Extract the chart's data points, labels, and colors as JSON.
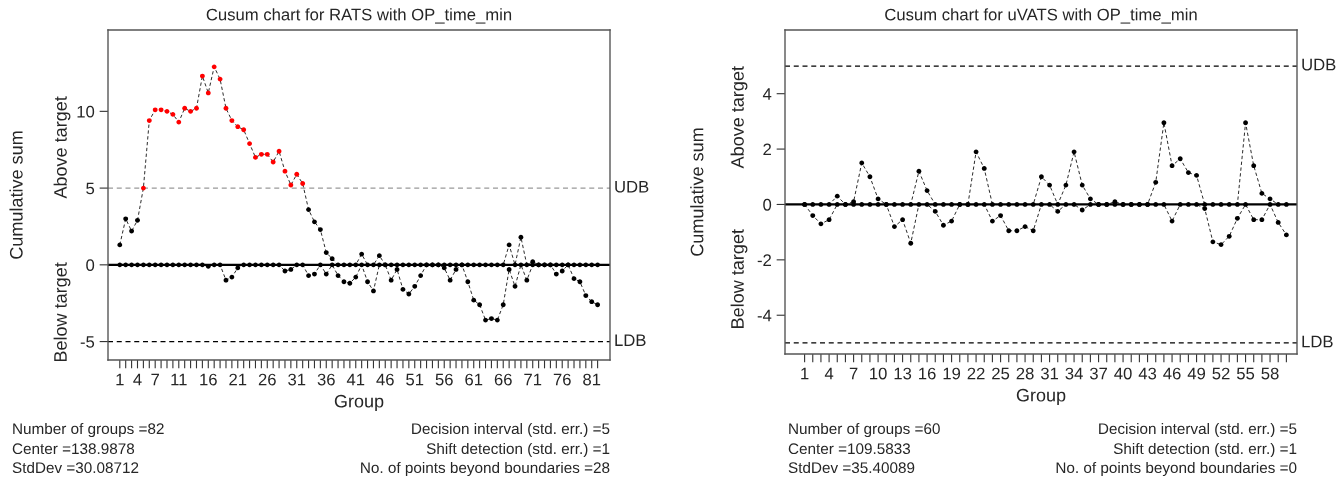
{
  "chart_data": [
    {
      "type": "line",
      "title": "Cusum chart for RATS with OP_time_min",
      "xlabel": "Group",
      "ylabel": "Cumulative sum",
      "marker": "circle",
      "line_style": "dashed",
      "x": [
        1,
        2,
        3,
        4,
        5,
        6,
        7,
        8,
        9,
        10,
        11,
        12,
        13,
        14,
        15,
        16,
        17,
        18,
        19,
        20,
        21,
        22,
        23,
        24,
        25,
        26,
        27,
        28,
        29,
        30,
        31,
        32,
        33,
        34,
        35,
        36,
        37,
        38,
        39,
        40,
        41,
        42,
        43,
        44,
        45,
        46,
        47,
        48,
        49,
        50,
        51,
        52,
        53,
        54,
        55,
        56,
        57,
        58,
        59,
        60,
        61,
        62,
        63,
        64,
        65,
        66,
        67,
        68,
        69,
        70,
        71,
        72,
        73,
        74,
        75,
        76,
        77,
        78,
        79,
        80,
        81,
        82
      ],
      "series": [
        {
          "color": "#000000",
          "values": [
            1.3,
            3.0,
            2.2,
            2.9,
            5.0,
            9.4,
            10.1,
            10.1,
            10.0,
            9.8,
            9.3,
            10.2,
            10.0,
            10.2,
            12.3,
            11.2,
            12.9,
            12.1,
            10.2,
            9.4,
            9.0,
            8.8,
            7.9,
            7.0,
            7.2,
            7.2,
            6.7,
            7.4,
            6.1,
            5.2,
            5.9,
            5.3,
            3.6,
            2.8,
            2.3,
            0.8,
            0.4,
            0,
            0,
            0,
            0,
            0.7,
            0,
            0,
            0.6,
            0,
            0,
            0,
            0,
            0,
            0,
            0,
            0,
            0,
            0,
            0,
            0,
            0,
            0,
            0,
            0,
            0,
            0,
            0,
            0,
            0,
            1.3,
            0,
            1.8,
            0,
            0.2,
            0,
            0,
            0,
            0,
            0,
            0,
            0,
            0,
            0,
            0,
            0
          ],
          "colors": [
            "#000000",
            "#000000",
            "#000000",
            "#000000",
            "#ff0000",
            "#ff0000",
            "#ff0000",
            "#ff0000",
            "#ff0000",
            "#ff0000",
            "#ff0000",
            "#ff0000",
            "#ff0000",
            "#ff0000",
            "#ff0000",
            "#ff0000",
            "#ff0000",
            "#ff0000",
            "#ff0000",
            "#ff0000",
            "#ff0000",
            "#ff0000",
            "#ff0000",
            "#ff0000",
            "#ff0000",
            "#ff0000",
            "#ff0000",
            "#ff0000",
            "#ff0000",
            "#ff0000",
            "#ff0000",
            "#ff0000",
            "#000000",
            "#000000",
            "#000000",
            "#000000",
            "#000000",
            "#000000",
            "#000000",
            "#000000",
            "#000000",
            "#000000",
            "#000000",
            "#000000",
            "#000000",
            "#000000",
            "#000000",
            "#000000",
            "#000000",
            "#000000",
            "#000000",
            "#000000",
            "#000000",
            "#000000",
            "#000000",
            "#000000",
            "#000000",
            "#000000",
            "#000000",
            "#000000",
            "#000000",
            "#000000",
            "#000000",
            "#000000",
            "#000000",
            "#000000",
            "#000000",
            "#000000",
            "#000000",
            "#000000",
            "#000000",
            "#000000",
            "#000000",
            "#000000",
            "#000000",
            "#000000",
            "#000000",
            "#000000",
            "#000000",
            "#000000",
            "#000000",
            "#000000"
          ]
        },
        {
          "color": "#000000",
          "values": [
            0,
            0,
            0,
            0,
            0,
            0,
            0,
            0,
            0,
            0,
            0,
            0,
            0,
            0,
            0,
            -0.1,
            0,
            0,
            -1.0,
            -0.8,
            -0.2,
            0,
            0,
            0,
            0,
            0,
            0,
            0,
            -0.4,
            -0.3,
            0,
            0,
            -0.7,
            -0.6,
            0,
            -0.6,
            0,
            -0.7,
            -1.1,
            -1.2,
            -0.8,
            0,
            -1.1,
            -1.7,
            0,
            0,
            -1.0,
            -0.3,
            -1.6,
            -1.9,
            -1.4,
            -0.7,
            0,
            0,
            0,
            -0.2,
            -1.0,
            -0.3,
            0,
            -1.1,
            -2.3,
            -2.6,
            -3.6,
            -3.5,
            -3.6,
            -2.6,
            -0.3,
            -1.4,
            0,
            -1.0,
            0,
            0,
            0,
            0,
            -0.6,
            -0.4,
            0,
            -0.9,
            -1.1,
            -2.0,
            -2.4,
            -2.6
          ]
        }
      ],
      "xlim": [
        -1,
        84.1
      ],
      "ylim": [
        -6.2,
        15.3
      ],
      "xticks": [
        1,
        {
          "value": 2,
          "label": null
        },
        {
          "value": 3,
          "label": null
        },
        4,
        {
          "value": 5,
          "label": null
        },
        {
          "value": 6,
          "label": null
        },
        7,
        {
          "value": 8,
          "label": null
        },
        {
          "value": 9,
          "label": null
        },
        {
          "value": 10,
          "label": null
        },
        11,
        {
          "value": 12,
          "label": null
        },
        {
          "value": 13,
          "label": null
        },
        {
          "value": 14,
          "label": null
        },
        {
          "value": 15,
          "label": null
        },
        16,
        {
          "value": 17,
          "label": null
        },
        {
          "value": 18,
          "label": null
        },
        {
          "value": 19,
          "label": null
        },
        {
          "value": 20,
          "label": null
        },
        21,
        {
          "value": 22,
          "label": null
        },
        {
          "value": 23,
          "label": null
        },
        {
          "value": 24,
          "label": null
        },
        {
          "value": 25,
          "label": null
        },
        26,
        {
          "value": 27,
          "label": null
        },
        {
          "value": 28,
          "label": null
        },
        {
          "value": 29,
          "label": null
        },
        {
          "value": 30,
          "label": null
        },
        31,
        {
          "value": 32,
          "label": null
        },
        {
          "value": 33,
          "label": null
        },
        {
          "value": 34,
          "label": null
        },
        {
          "value": 35,
          "label": null
        },
        36,
        {
          "value": 37,
          "label": null
        },
        {
          "value": 38,
          "label": null
        },
        {
          "value": 39,
          "label": null
        },
        {
          "value": 40,
          "label": null
        },
        41,
        {
          "value": 42,
          "label": null
        },
        {
          "value": 43,
          "label": null
        },
        {
          "value": 44,
          "label": null
        },
        {
          "value": 45,
          "label": null
        },
        46,
        {
          "value": 47,
          "label": null
        },
        {
          "value": 48,
          "label": null
        },
        {
          "value": 49,
          "label": null
        },
        {
          "value": 50,
          "label": null
        },
        51,
        {
          "value": 52,
          "label": null
        },
        {
          "value": 53,
          "label": null
        },
        {
          "value": 54,
          "label": null
        },
        {
          "value": 55,
          "label": null
        },
        56,
        {
          "value": 57,
          "label": null
        },
        {
          "value": 58,
          "label": null
        },
        {
          "value": 59,
          "label": null
        },
        {
          "value": 60,
          "label": null
        },
        61,
        {
          "value": 62,
          "label": null
        },
        {
          "value": 63,
          "label": null
        },
        {
          "value": 64,
          "label": null
        },
        {
          "value": 65,
          "label": null
        },
        66,
        {
          "value": 67,
          "label": null
        },
        {
          "value": 68,
          "label": null
        },
        {
          "value": 69,
          "label": null
        },
        {
          "value": 70,
          "label": null
        },
        71,
        {
          "value": 72,
          "label": null
        },
        {
          "value": 73,
          "label": null
        },
        {
          "value": 74,
          "label": null
        },
        {
          "value": 75,
          "label": null
        },
        76,
        {
          "value": 77,
          "label": null
        },
        {
          "value": 78,
          "label": null
        },
        {
          "value": 79,
          "label": null
        },
        {
          "value": 80,
          "label": null
        },
        81,
        {
          "value": 82,
          "label": null
        }
      ],
      "yticks": [
        -5,
        0,
        5,
        10
      ],
      "ref_lines": [
        {
          "axis": "y",
          "value": 0,
          "color": "#000000",
          "line_style": "solid"
        },
        {
          "axis": "y",
          "value": 5,
          "label": "UDB",
          "color": "#999999",
          "line_style": "dashed"
        },
        {
          "axis": "y",
          "value": -5,
          "label": "LDB",
          "color": "#000000",
          "line_style": "dashed"
        }
      ],
      "annotations": [
        "Above target",
        "Below target",
        "Number of groups =82",
        "Center =138.9878",
        "StdDev =30.08712",
        "Decision interval (std. err.) =5",
        "Shift detection (std. err.) =1",
        "No. of points beyond boundaries =28"
      ]
    },
    {
      "type": "line",
      "title": "Cusum chart for uVATS with OP_time_min",
      "xlabel": "Group",
      "ylabel": "Cumulative sum",
      "marker": "circle",
      "line_style": "dashed",
      "x": [
        1,
        2,
        3,
        4,
        5,
        6,
        7,
        8,
        9,
        10,
        11,
        12,
        13,
        14,
        15,
        16,
        17,
        18,
        19,
        20,
        21,
        22,
        23,
        24,
        25,
        26,
        27,
        28,
        29,
        30,
        31,
        32,
        33,
        34,
        35,
        36,
        37,
        38,
        39,
        40,
        41,
        42,
        43,
        44,
        45,
        46,
        47,
        48,
        49,
        50,
        51,
        52,
        53,
        54,
        55,
        56,
        57,
        58,
        59,
        60
      ],
      "series": [
        {
          "color": "#000000",
          "values": [
            0,
            0,
            0,
            0,
            0.3,
            0,
            0.1,
            1.5,
            1.0,
            0.2,
            0,
            0,
            0,
            0,
            1.2,
            0.5,
            0,
            0,
            0,
            0,
            0,
            1.9,
            1.3,
            0,
            0,
            0,
            0,
            0,
            0,
            1.0,
            0.7,
            0,
            0.7,
            1.9,
            0.7,
            0.2,
            0,
            0,
            0.1,
            0,
            0,
            0,
            0,
            0.8,
            2.95,
            1.4,
            1.65,
            1.15,
            1.05,
            0,
            0,
            0,
            0,
            0,
            2.95,
            1.4,
            0.4,
            0.2,
            0,
            0
          ]
        },
        {
          "color": "#000000",
          "values": [
            0,
            -0.4,
            -0.7,
            -0.55,
            0,
            0,
            0,
            0,
            0,
            0,
            0,
            -0.8,
            -0.55,
            -1.4,
            0,
            0,
            -0.25,
            -0.75,
            -0.6,
            0,
            0,
            0,
            0,
            -0.6,
            -0.4,
            -0.95,
            -0.95,
            -0.8,
            -0.95,
            0,
            0,
            -0.25,
            0,
            0,
            -0.2,
            0,
            0,
            0,
            0,
            0,
            0,
            0,
            0,
            0,
            0,
            -0.6,
            0,
            0,
            0,
            -0.15,
            -1.35,
            -1.45,
            -1.15,
            -0.5,
            0,
            -0.55,
            -0.55,
            0,
            -0.65,
            -1.1
          ]
        }
      ],
      "xlim": [
        -1.4,
        61.3
      ],
      "ylim": [
        -5.4,
        6.3
      ],
      "xticks": [
        1,
        {
          "value": 2,
          "label": null
        },
        {
          "value": 3,
          "label": null
        },
        4,
        {
          "value": 5,
          "label": null
        },
        {
          "value": 6,
          "label": null
        },
        7,
        {
          "value": 8,
          "label": null
        },
        {
          "value": 9,
          "label": null
        },
        10,
        {
          "value": 11,
          "label": null
        },
        {
          "value": 12,
          "label": null
        },
        13,
        {
          "value": 14,
          "label": null
        },
        {
          "value": 15,
          "label": null
        },
        16,
        {
          "value": 17,
          "label": null
        },
        {
          "value": 18,
          "label": null
        },
        19,
        {
          "value": 20,
          "label": null
        },
        {
          "value": 21,
          "label": null
        },
        22,
        {
          "value": 23,
          "label": null
        },
        {
          "value": 24,
          "label": null
        },
        25,
        {
          "value": 26,
          "label": null
        },
        {
          "value": 27,
          "label": null
        },
        28,
        {
          "value": 29,
          "label": null
        },
        {
          "value": 30,
          "label": null
        },
        31,
        {
          "value": 32,
          "label": null
        },
        {
          "value": 33,
          "label": null
        },
        34,
        {
          "value": 35,
          "label": null
        },
        {
          "value": 36,
          "label": null
        },
        37,
        {
          "value": 38,
          "label": null
        },
        {
          "value": 39,
          "label": null
        },
        40,
        {
          "value": 41,
          "label": null
        },
        {
          "value": 42,
          "label": null
        },
        43,
        {
          "value": 44,
          "label": null
        },
        {
          "value": 45,
          "label": null
        },
        46,
        {
          "value": 47,
          "label": null
        },
        {
          "value": 48,
          "label": null
        },
        49,
        {
          "value": 50,
          "label": null
        },
        {
          "value": 51,
          "label": null
        },
        52,
        {
          "value": 53,
          "label": null
        },
        {
          "value": 54,
          "label": null
        },
        55,
        {
          "value": 56,
          "label": null
        },
        {
          "value": 57,
          "label": null
        },
        58,
        {
          "value": 59,
          "label": null
        },
        {
          "value": 60,
          "label": null
        }
      ],
      "yticks": [
        -4,
        -2,
        0,
        2,
        4
      ],
      "ref_lines": [
        {
          "axis": "y",
          "value": 0,
          "color": "#000000",
          "line_style": "solid"
        },
        {
          "axis": "y",
          "value": 5,
          "label": "UDB",
          "color": "#000000",
          "line_style": "dashed"
        },
        {
          "axis": "y",
          "value": -5,
          "label": "LDB",
          "color": "#000000",
          "line_style": "dashed"
        }
      ],
      "annotations": [
        "Above target",
        "Below target",
        "Number of groups =60",
        "Center =109.5833",
        "StdDev =35.40089",
        "Decision interval (std. err.) =5",
        "Shift detection (std. err.) =1",
        "No. of points beyond boundaries =0"
      ]
    }
  ]
}
